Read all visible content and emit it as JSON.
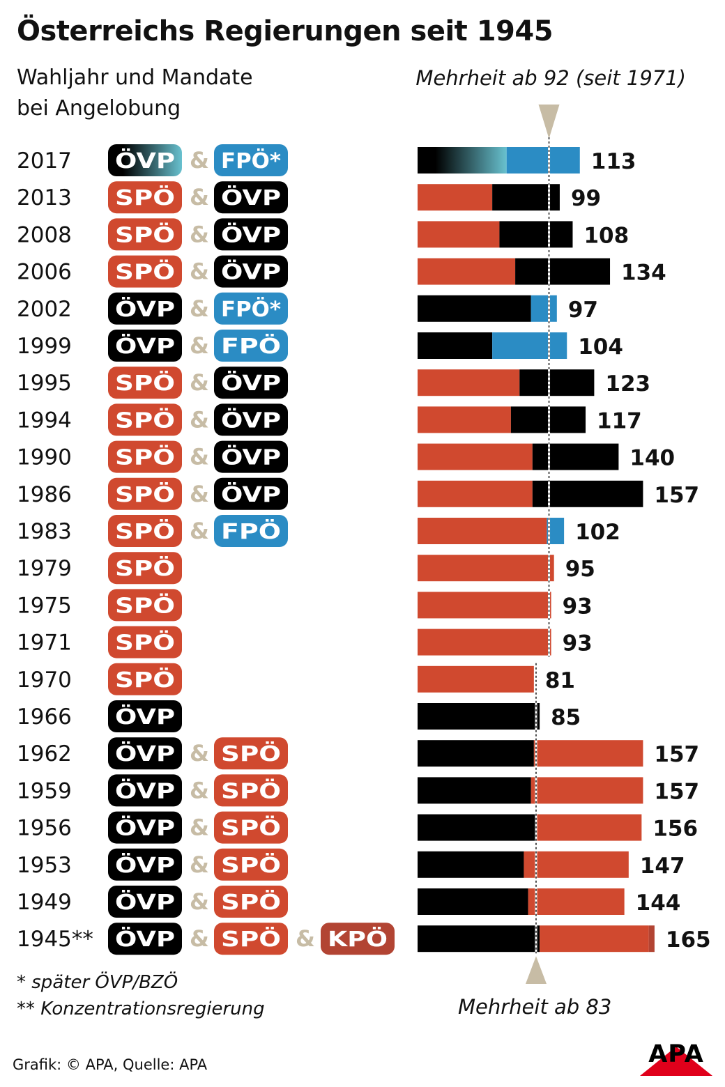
{
  "title": "Österreichs Regierungen seit 1945",
  "subtitle_lines": [
    "Wahljahr und Mandate",
    "bei Angelobung"
  ],
  "annotations": {
    "majority_top": "Mehrheit ab 92 (seit 1971)",
    "majority_bottom": "Mehrheit ab 83"
  },
  "footnotes": [
    "* später ÖVP/BZÖ",
    "** Konzentrationsregierung"
  ],
  "source": "Grafik: © APA, Quelle: APA",
  "logo_text": "APA",
  "connector": "&",
  "colors": {
    "SPÖ": "#d0492f",
    "ÖVP": "#000000",
    "FPÖ": "#2b8cc4",
    "KPÖ": "#b24433",
    "ÖVP_2017_gradient_end": "#68c1cf",
    "connector": "#c7bca5",
    "majority_marker": "#c7bca5"
  },
  "chart_data": {
    "type": "bar",
    "orientation": "horizontal",
    "stacked": true,
    "unit": "Mandate",
    "majority_thresholds": [
      {
        "label": "Mehrheit ab 92 (seit 1971)",
        "value": 92
      },
      {
        "label": "Mehrheit ab 83",
        "value": 83
      }
    ],
    "rows": [
      {
        "year": "2017",
        "parties": [
          "ÖVP",
          "FPÖ*"
        ],
        "segments": [
          {
            "party": "ÖVP",
            "value": 62
          },
          {
            "party": "FPÖ",
            "value": 51
          }
        ],
        "total": 113
      },
      {
        "year": "2013",
        "parties": [
          "SPÖ",
          "ÖVP"
        ],
        "segments": [
          {
            "party": "SPÖ",
            "value": 52
          },
          {
            "party": "ÖVP",
            "value": 47
          }
        ],
        "total": 99
      },
      {
        "year": "2008",
        "parties": [
          "SPÖ",
          "ÖVP"
        ],
        "segments": [
          {
            "party": "SPÖ",
            "value": 57
          },
          {
            "party": "ÖVP",
            "value": 51
          }
        ],
        "total": 108
      },
      {
        "year": "2006",
        "parties": [
          "SPÖ",
          "ÖVP"
        ],
        "segments": [
          {
            "party": "SPÖ",
            "value": 68
          },
          {
            "party": "ÖVP",
            "value": 66
          }
        ],
        "total": 134
      },
      {
        "year": "2002",
        "parties": [
          "ÖVP",
          "FPÖ*"
        ],
        "segments": [
          {
            "party": "ÖVP",
            "value": 79
          },
          {
            "party": "FPÖ",
            "value": 18
          }
        ],
        "total": 97
      },
      {
        "year": "1999",
        "parties": [
          "ÖVP",
          "FPÖ"
        ],
        "segments": [
          {
            "party": "ÖVP",
            "value": 52
          },
          {
            "party": "FPÖ",
            "value": 52
          }
        ],
        "total": 104
      },
      {
        "year": "1995",
        "parties": [
          "SPÖ",
          "ÖVP"
        ],
        "segments": [
          {
            "party": "SPÖ",
            "value": 71
          },
          {
            "party": "ÖVP",
            "value": 52
          }
        ],
        "total": 123
      },
      {
        "year": "1994",
        "parties": [
          "SPÖ",
          "ÖVP"
        ],
        "segments": [
          {
            "party": "SPÖ",
            "value": 65
          },
          {
            "party": "ÖVP",
            "value": 52
          }
        ],
        "total": 117
      },
      {
        "year": "1990",
        "parties": [
          "SPÖ",
          "ÖVP"
        ],
        "segments": [
          {
            "party": "SPÖ",
            "value": 80
          },
          {
            "party": "ÖVP",
            "value": 60
          }
        ],
        "total": 140
      },
      {
        "year": "1986",
        "parties": [
          "SPÖ",
          "ÖVP"
        ],
        "segments": [
          {
            "party": "SPÖ",
            "value": 80
          },
          {
            "party": "ÖVP",
            "value": 77
          }
        ],
        "total": 157
      },
      {
        "year": "1983",
        "parties": [
          "SPÖ",
          "FPÖ"
        ],
        "segments": [
          {
            "party": "SPÖ",
            "value": 90
          },
          {
            "party": "FPÖ",
            "value": 12
          }
        ],
        "total": 102
      },
      {
        "year": "1979",
        "parties": [
          "SPÖ"
        ],
        "segments": [
          {
            "party": "SPÖ",
            "value": 95
          }
        ],
        "total": 95
      },
      {
        "year": "1975",
        "parties": [
          "SPÖ"
        ],
        "segments": [
          {
            "party": "SPÖ",
            "value": 93
          }
        ],
        "total": 93
      },
      {
        "year": "1971",
        "parties": [
          "SPÖ"
        ],
        "segments": [
          {
            "party": "SPÖ",
            "value": 93
          }
        ],
        "total": 93
      },
      {
        "year": "1970",
        "parties": [
          "SPÖ"
        ],
        "segments": [
          {
            "party": "SPÖ",
            "value": 81
          }
        ],
        "total": 81
      },
      {
        "year": "1966",
        "parties": [
          "ÖVP"
        ],
        "segments": [
          {
            "party": "ÖVP",
            "value": 85
          }
        ],
        "total": 85
      },
      {
        "year": "1962",
        "parties": [
          "ÖVP",
          "SPÖ"
        ],
        "segments": [
          {
            "party": "ÖVP",
            "value": 81
          },
          {
            "party": "SPÖ",
            "value": 76
          }
        ],
        "total": 157
      },
      {
        "year": "1959",
        "parties": [
          "ÖVP",
          "SPÖ"
        ],
        "segments": [
          {
            "party": "ÖVP",
            "value": 79
          },
          {
            "party": "SPÖ",
            "value": 78
          }
        ],
        "total": 157
      },
      {
        "year": "1956",
        "parties": [
          "ÖVP",
          "SPÖ"
        ],
        "segments": [
          {
            "party": "ÖVP",
            "value": 82
          },
          {
            "party": "SPÖ",
            "value": 74
          }
        ],
        "total": 156
      },
      {
        "year": "1953",
        "parties": [
          "ÖVP",
          "SPÖ"
        ],
        "segments": [
          {
            "party": "ÖVP",
            "value": 74
          },
          {
            "party": "SPÖ",
            "value": 73
          }
        ],
        "total": 147
      },
      {
        "year": "1949",
        "parties": [
          "ÖVP",
          "SPÖ"
        ],
        "segments": [
          {
            "party": "ÖVP",
            "value": 77
          },
          {
            "party": "SPÖ",
            "value": 67
          }
        ],
        "total": 144
      },
      {
        "year": "1945**",
        "parties": [
          "ÖVP",
          "SPÖ",
          "KPÖ"
        ],
        "segments": [
          {
            "party": "ÖVP",
            "value": 85
          },
          {
            "party": "SPÖ",
            "value": 76
          },
          {
            "party": "KPÖ",
            "value": 4
          }
        ],
        "total": 165
      }
    ]
  }
}
